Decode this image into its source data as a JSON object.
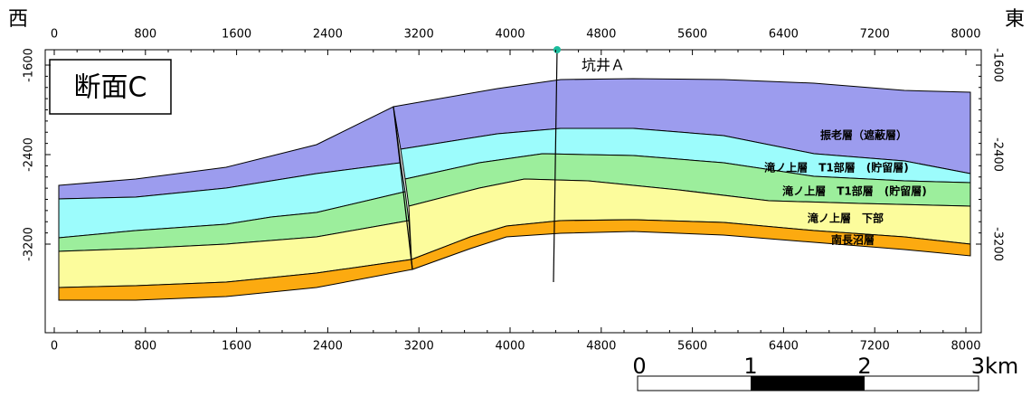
{
  "west_label": "西",
  "east_label": "東",
  "section_title": "断面C",
  "well_label": "坑井Ａ",
  "x_ticks": [
    0,
    800,
    1600,
    2400,
    3200,
    4000,
    4800,
    5600,
    6400,
    7200,
    8000
  ],
  "y_ticks": [
    -1600,
    -2400,
    -3200
  ],
  "layers": [
    "振老層（遮蔽層）",
    "滝ノ上層　T1部層　(貯留層)",
    "滝ノ上層　T1部層　(貯留層)",
    "滝ノ上層　下部",
    "南長沼層"
  ],
  "scale_bar": [
    "0",
    "1",
    "2",
    "3km"
  ]
}
